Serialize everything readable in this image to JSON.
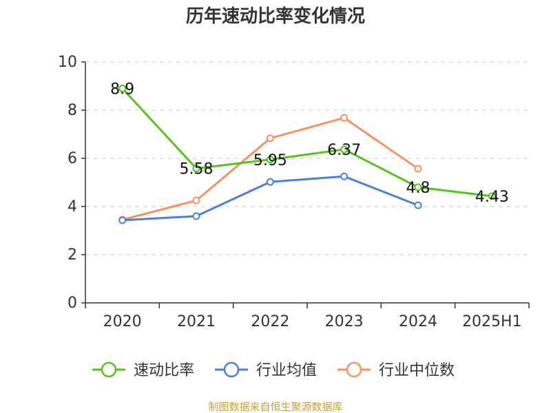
{
  "chart_data": {
    "type": "line",
    "title": "历年速动比率变化情况",
    "xlabel": "",
    "ylabel": "",
    "categories": [
      "2020",
      "2021",
      "2022",
      "2023",
      "2024",
      "2025H1"
    ],
    "ylim": [
      0,
      10
    ],
    "yticks": [
      0,
      2,
      4,
      6,
      8,
      10
    ],
    "grid": true,
    "legend_position": "bottom",
    "series": [
      {
        "name": "速动比率",
        "color": "#52c41a",
        "values": [
          8.9,
          5.58,
          5.95,
          6.37,
          4.8,
          4.43
        ],
        "labels": [
          "8.9",
          "5.58",
          "5.95",
          "6.37",
          "4.8",
          "4.43"
        ]
      },
      {
        "name": "行业均值",
        "color": "#4a7fdb",
        "values": [
          3.43,
          3.6,
          5.02,
          5.25,
          4.05,
          null
        ]
      },
      {
        "name": "行业中位数",
        "color": "#f5925e",
        "values": [
          3.45,
          4.25,
          6.83,
          7.68,
          5.57,
          null
        ]
      }
    ]
  },
  "source": "制图数据来自恒生聚源数据库"
}
